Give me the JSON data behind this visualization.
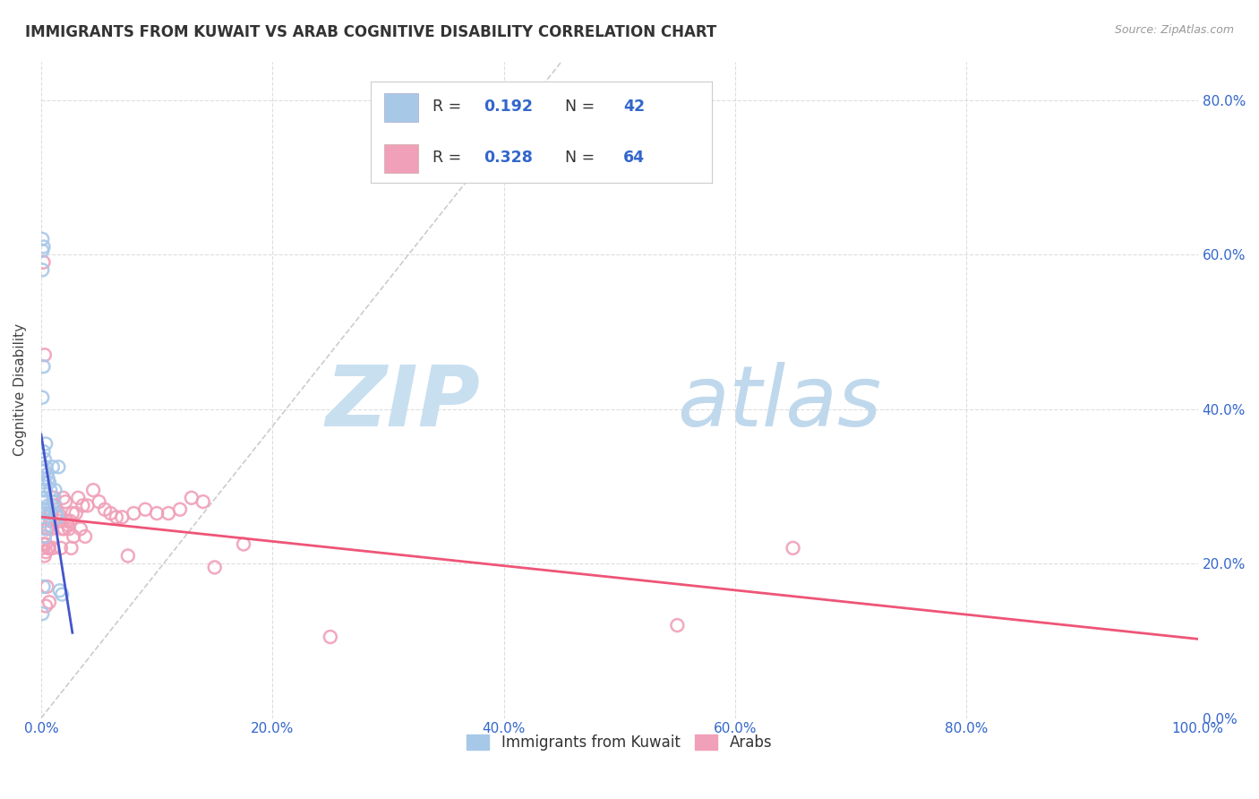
{
  "title": "IMMIGRANTS FROM KUWAIT VS ARAB COGNITIVE DISABILITY CORRELATION CHART",
  "source": "Source: ZipAtlas.com",
  "ylabel_label": "Cognitive Disability",
  "legend_label1": "Immigrants from Kuwait",
  "legend_label2": "Arabs",
  "R1": "0.192",
  "N1": "42",
  "R2": "0.328",
  "N2": "64",
  "color_blue": "#a8c8e8",
  "color_pink": "#f0a0b8",
  "color_blue_text": "#3366cc",
  "color_trendline_blue": "#4455cc",
  "color_trendline_pink": "#ee5577",
  "color_diagonal": "#cccccc",
  "xlim": [
    0,
    1.0
  ],
  "ylim": [
    0,
    0.85
  ],
  "xticks": [
    0.0,
    0.2,
    0.4,
    0.6,
    0.8,
    1.0
  ],
  "yticks": [
    0.0,
    0.2,
    0.4,
    0.6,
    0.8
  ],
  "blue_scatter_x": [
    0.001,
    0.001,
    0.001,
    0.001,
    0.002,
    0.002,
    0.002,
    0.002,
    0.002,
    0.002,
    0.002,
    0.003,
    0.003,
    0.003,
    0.003,
    0.003,
    0.003,
    0.004,
    0.004,
    0.004,
    0.004,
    0.005,
    0.005,
    0.006,
    0.006,
    0.007,
    0.007,
    0.008,
    0.009,
    0.01,
    0.011,
    0.012,
    0.013,
    0.014,
    0.015,
    0.016,
    0.018,
    0.002,
    0.003,
    0.001,
    0.002,
    0.003
  ],
  "blue_scatter_y": [
    0.62,
    0.58,
    0.605,
    0.135,
    0.61,
    0.455,
    0.345,
    0.31,
    0.295,
    0.285,
    0.27,
    0.335,
    0.32,
    0.305,
    0.295,
    0.28,
    0.265,
    0.355,
    0.325,
    0.295,
    0.285,
    0.315,
    0.27,
    0.31,
    0.275,
    0.305,
    0.265,
    0.295,
    0.275,
    0.325,
    0.28,
    0.295,
    0.265,
    0.26,
    0.325,
    0.165,
    0.16,
    0.17,
    0.245,
    0.415,
    0.255,
    0.235
  ],
  "pink_scatter_x": [
    0.001,
    0.002,
    0.003,
    0.003,
    0.004,
    0.004,
    0.005,
    0.005,
    0.006,
    0.006,
    0.007,
    0.007,
    0.008,
    0.008,
    0.009,
    0.009,
    0.01,
    0.01,
    0.011,
    0.012,
    0.013,
    0.014,
    0.015,
    0.016,
    0.017,
    0.018,
    0.019,
    0.02,
    0.021,
    0.022,
    0.023,
    0.024,
    0.025,
    0.026,
    0.027,
    0.028,
    0.03,
    0.032,
    0.034,
    0.036,
    0.038,
    0.04,
    0.045,
    0.05,
    0.055,
    0.06,
    0.065,
    0.07,
    0.075,
    0.08,
    0.09,
    0.1,
    0.11,
    0.12,
    0.13,
    0.14,
    0.15,
    0.175,
    0.25,
    0.55,
    0.65,
    0.002,
    0.003,
    0.004
  ],
  "pink_scatter_y": [
    0.22,
    0.225,
    0.235,
    0.21,
    0.215,
    0.225,
    0.17,
    0.245,
    0.245,
    0.22,
    0.22,
    0.15,
    0.265,
    0.255,
    0.265,
    0.245,
    0.255,
    0.22,
    0.285,
    0.275,
    0.265,
    0.26,
    0.265,
    0.255,
    0.22,
    0.245,
    0.285,
    0.245,
    0.28,
    0.255,
    0.25,
    0.245,
    0.255,
    0.22,
    0.265,
    0.235,
    0.265,
    0.285,
    0.245,
    0.275,
    0.235,
    0.275,
    0.295,
    0.28,
    0.27,
    0.265,
    0.26,
    0.26,
    0.21,
    0.265,
    0.27,
    0.265,
    0.265,
    0.27,
    0.285,
    0.28,
    0.195,
    0.225,
    0.105,
    0.12,
    0.22,
    0.59,
    0.47,
    0.145
  ]
}
